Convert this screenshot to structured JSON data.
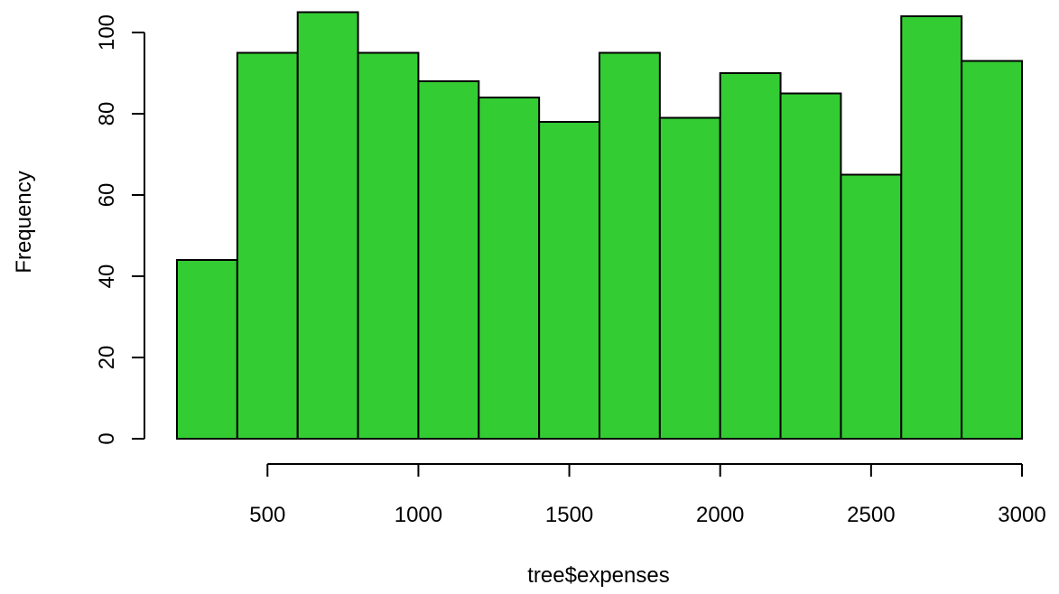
{
  "chart_data": {
    "type": "bar",
    "histogram": true,
    "bin_edges": [
      200,
      400,
      600,
      800,
      1000,
      1200,
      1400,
      1600,
      1800,
      2000,
      2200,
      2400,
      2600,
      2800,
      3000
    ],
    "values": [
      44,
      95,
      105,
      95,
      88,
      84,
      78,
      95,
      79,
      90,
      85,
      65,
      104,
      93
    ],
    "bar_color": "#33CC33",
    "title": "",
    "xlabel": "tree$expenses",
    "ylabel": "Frequency",
    "xlim": [
      200,
      3000
    ],
    "ylim": [
      0,
      105
    ],
    "xticks": [
      500,
      1000,
      1500,
      2000,
      2500,
      3000
    ],
    "yticks": [
      0,
      20,
      40,
      60,
      80,
      100
    ],
    "xtick_labels": [
      "500",
      "1000",
      "1500",
      "2000",
      "2500",
      "3000"
    ],
    "ytick_labels": [
      "0",
      "20",
      "40",
      "60",
      "80",
      "100"
    ],
    "grid": false,
    "legend": "none"
  }
}
